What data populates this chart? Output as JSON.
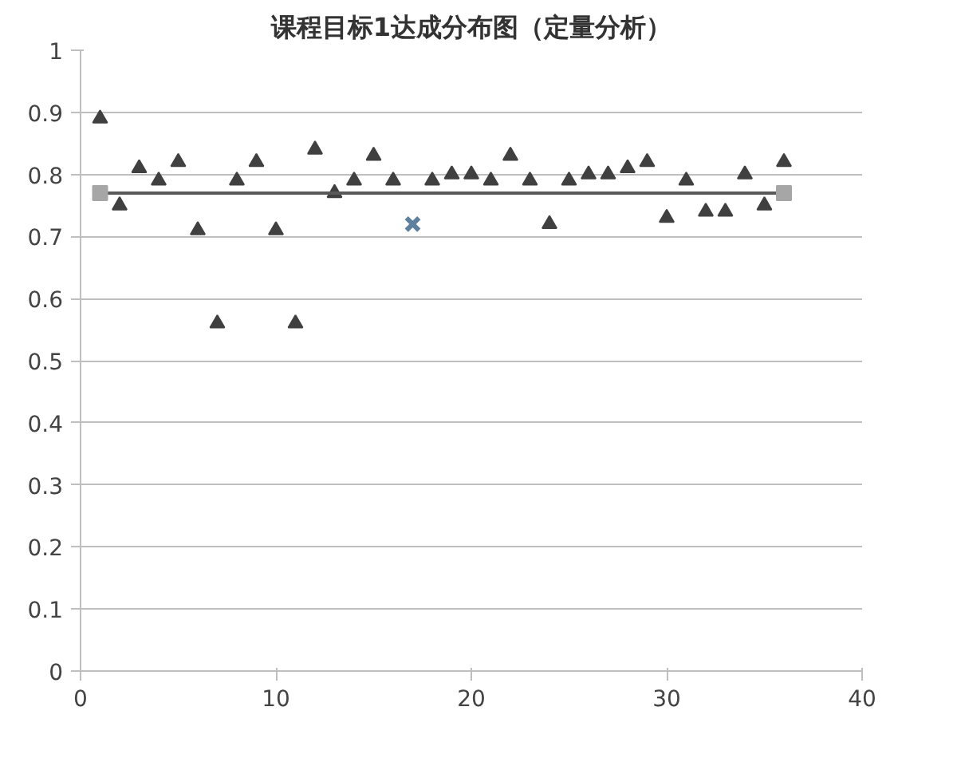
{
  "chart_data": {
    "type": "scatter",
    "title": "课程目标1达成分布图（定量分析）",
    "xlim": [
      0,
      40
    ],
    "xticks": [
      0,
      10,
      20,
      30,
      40
    ],
    "ylim": [
      0,
      1
    ],
    "yticks": [
      0,
      {
        "value": 0.1,
        "label": "0.1"
      },
      {
        "value": 0.2,
        "label": "0.2"
      },
      {
        "value": 0.3,
        "label": "0.3"
      },
      {
        "value": 0.4,
        "label": "0.4"
      },
      {
        "value": 0.5,
        "label": "0.5"
      },
      {
        "value": 0.6,
        "label": "0.6"
      },
      {
        "value": 0.7,
        "label": "0.7"
      },
      {
        "value": 0.8,
        "label": "0.8"
      },
      {
        "value": 0.9,
        "label": "0.9"
      },
      1
    ],
    "grid": "y",
    "series": [
      {
        "marker": "triangle",
        "color": "#404040",
        "x": [
          1,
          2,
          3,
          4,
          5,
          6,
          7,
          8,
          9,
          10,
          11,
          12,
          13,
          14,
          15,
          16,
          18,
          19,
          20,
          21,
          22,
          23,
          24,
          25,
          26,
          27,
          28,
          29,
          30,
          31,
          32,
          33,
          34,
          35,
          36
        ],
        "values": [
          0.89,
          0.75,
          0.81,
          0.79,
          0.82,
          0.71,
          0.56,
          0.79,
          0.82,
          0.71,
          0.56,
          0.84,
          0.77,
          0.79,
          0.83,
          0.79,
          0.79,
          0.8,
          0.8,
          0.79,
          0.83,
          0.79,
          0.72,
          0.79,
          0.8,
          0.8,
          0.81,
          0.82,
          0.73,
          0.79,
          0.74,
          0.74,
          0.8,
          0.75,
          0.82
        ]
      },
      {
        "marker": "cross",
        "color": "#5f7f9f",
        "x": [
          17
        ],
        "values": [
          0.72
        ]
      },
      {
        "type": "line",
        "marker": "square",
        "line_style": "solid",
        "color": "#595959",
        "x": [
          1,
          36
        ],
        "values": [
          0.77,
          0.77
        ]
      }
    ]
  }
}
